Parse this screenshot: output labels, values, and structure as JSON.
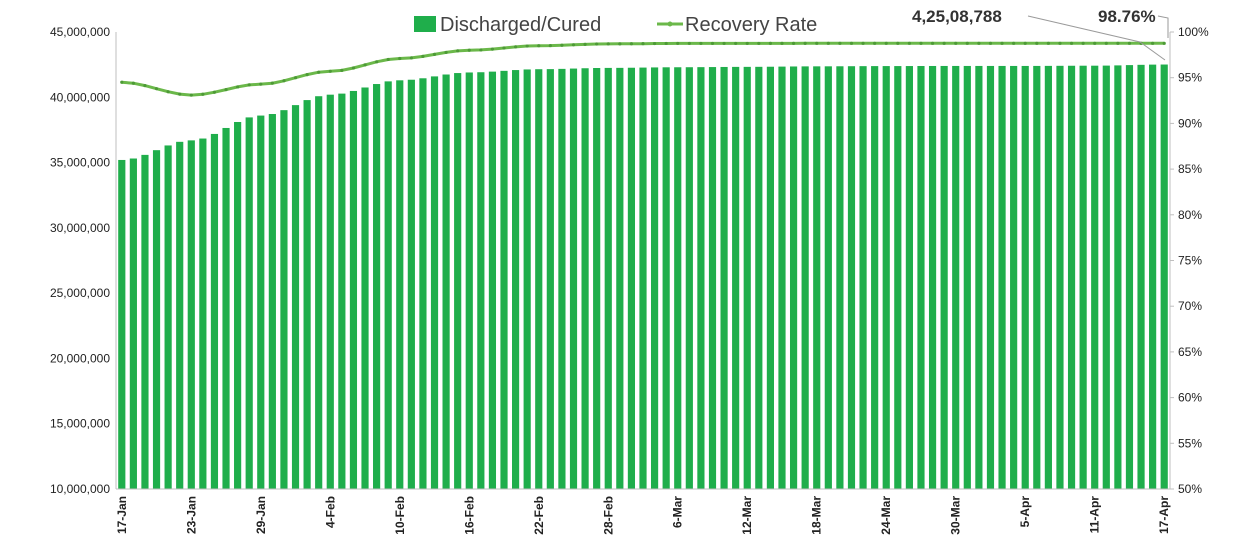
{
  "chart_data": {
    "type": "bar",
    "x_tick_labels": [
      "17-Jan",
      "23-Jan",
      "29-Jan",
      "4-Feb",
      "10-Feb",
      "16-Feb",
      "22-Feb",
      "28-Feb",
      "6-Mar",
      "12-Mar",
      "18-Mar",
      "24-Mar",
      "30-Mar",
      "5-Apr",
      "11-Apr",
      "17-Apr"
    ],
    "y_left": {
      "lim": [
        10000000,
        45000000
      ],
      "ticks": [
        "10,000,000",
        "15,000,000",
        "20,000,000",
        "25,000,000",
        "30,000,000",
        "35,000,000",
        "40,000,000",
        "45,000,000"
      ]
    },
    "y_right": {
      "lim": [
        50,
        100
      ],
      "ticks": [
        "50%",
        "55%",
        "60%",
        "65%",
        "70%",
        "75%",
        "80%",
        "85%",
        "90%",
        "95%",
        "100%"
      ]
    },
    "legend_position": "top-center",
    "series": [
      {
        "name": "Discharged/Cured",
        "kind": "bar",
        "axis": "left",
        "color": "#1fae4b",
        "anchors": [
          [
            0,
            35200000
          ],
          [
            6,
            36700000
          ],
          [
            12,
            38600000
          ],
          [
            18,
            40200000
          ],
          [
            24,
            41300000
          ],
          [
            30,
            41900000
          ],
          [
            36,
            42150000
          ],
          [
            42,
            42250000
          ],
          [
            48,
            42300000
          ],
          [
            54,
            42330000
          ],
          [
            60,
            42370000
          ],
          [
            66,
            42390000
          ],
          [
            72,
            42400000
          ],
          [
            78,
            42400000
          ],
          [
            84,
            42420000
          ],
          [
            90,
            42508788
          ]
        ]
      },
      {
        "name": "Recovery Rate",
        "kind": "line",
        "axis": "right",
        "color": "#6bb84a",
        "anchors": [
          [
            0,
            94.5
          ],
          [
            6,
            93.1
          ],
          [
            12,
            94.3
          ],
          [
            18,
            95.7
          ],
          [
            24,
            97.1
          ],
          [
            30,
            98.0
          ],
          [
            36,
            98.5
          ],
          [
            42,
            98.7
          ],
          [
            48,
            98.75
          ],
          [
            54,
            98.75
          ],
          [
            60,
            98.76
          ],
          [
            66,
            98.76
          ],
          [
            72,
            98.76
          ],
          [
            78,
            98.76
          ],
          [
            84,
            98.76
          ],
          [
            90,
            98.76
          ]
        ]
      }
    ],
    "annotations": [
      {
        "text": "4,25,08,788",
        "series": "Discharged/Cured"
      },
      {
        "text": "98.76%",
        "series": "Recovery Rate"
      }
    ]
  }
}
